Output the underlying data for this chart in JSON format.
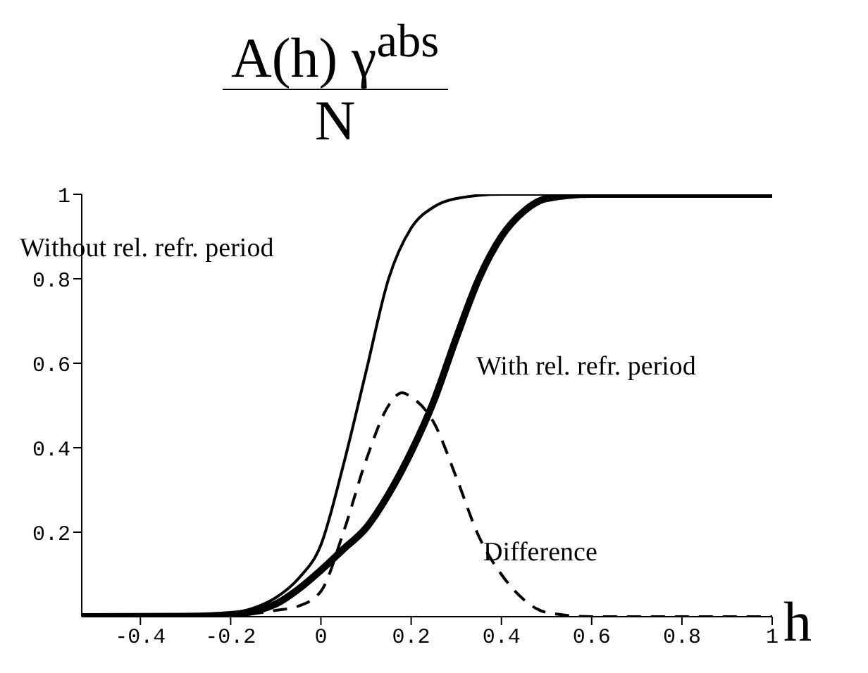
{
  "chart_data": {
    "type": "line",
    "ylabel": "A(h) γ$^{abs}$ N",
    "xlabel": "h",
    "xlim": [
      -0.53,
      1
    ],
    "ylim": [
      0,
      1
    ],
    "xticks": [
      -0.4,
      -0.2,
      0,
      0.2,
      0.4,
      0.6,
      0.8,
      1
    ],
    "yticks": [
      0.2,
      0.4,
      0.6,
      0.8,
      1
    ],
    "grid": false,
    "legend": false,
    "marker": "none",
    "series": [
      {
        "color": "#000000",
        "line_style": "solid",
        "x": [
          -0.53,
          -0.3,
          -0.2,
          -0.15,
          -0.1,
          -0.05,
          0,
          0.05,
          0.1,
          0.15,
          0.2,
          0.25,
          0.3,
          0.4,
          0.6,
          1
        ],
        "values": [
          0,
          0.002,
          0.008,
          0.02,
          0.045,
          0.09,
          0.17,
          0.36,
          0.58,
          0.8,
          0.92,
          0.97,
          0.99,
          1,
          1,
          1
        ]
      },
      {
        "color": "#000000",
        "line_style": "solid",
        "x": [
          -0.53,
          -0.3,
          -0.2,
          -0.1,
          -0.05,
          0,
          0.05,
          0.1,
          0.15,
          0.2,
          0.25,
          0.3,
          0.35,
          0.4,
          0.45,
          0.5,
          0.6,
          1
        ],
        "values": [
          0,
          0.001,
          0.005,
          0.03,
          0.065,
          0.11,
          0.16,
          0.21,
          0.29,
          0.39,
          0.51,
          0.66,
          0.8,
          0.9,
          0.96,
          0.99,
          1,
          1
        ]
      },
      {
        "color": "#000000",
        "line_style": "dashed",
        "x": [
          -0.53,
          -0.2,
          -0.1,
          -0.05,
          0,
          0.05,
          0.1,
          0.15,
          0.18,
          0.2,
          0.25,
          0.3,
          0.35,
          0.4,
          0.45,
          0.5,
          0.6,
          1
        ],
        "values": [
          0,
          0.003,
          0.015,
          0.025,
          0.06,
          0.2,
          0.37,
          0.5,
          0.53,
          0.52,
          0.46,
          0.33,
          0.19,
          0.1,
          0.04,
          0.01,
          0,
          0
        ]
      }
    ],
    "annotations": [
      "Without rel. refr. period",
      "With rel. refr. period",
      "Difference"
    ]
  }
}
